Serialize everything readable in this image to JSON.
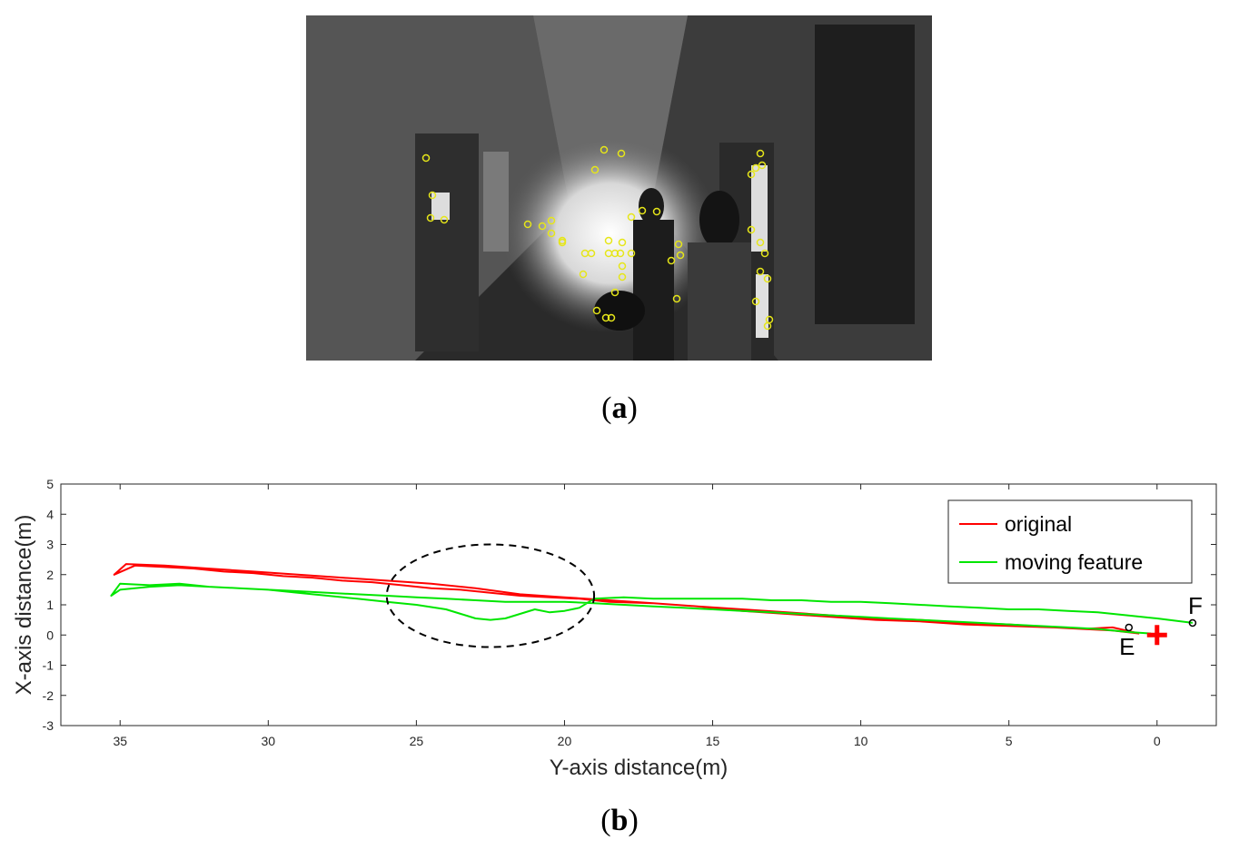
{
  "captions": {
    "a": "a",
    "b": "b"
  },
  "photo": {
    "description_icon": "grayscale-corridor-photo-with-feature-points",
    "feature_color": "#e6e619"
  },
  "chart_data": {
    "type": "line",
    "title": "",
    "xlabel": "Y-axis distance(m)",
    "ylabel": "X-axis distance(m)",
    "xlim": [
      37,
      -2
    ],
    "ylim": [
      -3,
      5
    ],
    "x_reversed": true,
    "xticks": [
      35,
      30,
      25,
      20,
      15,
      10,
      5,
      0
    ],
    "yticks": [
      5,
      4,
      3,
      2,
      1,
      0,
      -1,
      -2,
      -3
    ],
    "grid": false,
    "legend_position": "top-right",
    "series": [
      {
        "name": "original",
        "color": "#ff0000",
        "x": [
          0.6,
          1.5,
          2.5,
          3.5,
          5,
          6.5,
          8,
          9.5,
          11,
          12.5,
          14,
          15.5,
          17,
          18.5,
          19.5,
          20.5,
          21.5,
          22.5,
          23.5,
          24.5,
          25.5,
          26.5,
          27.5,
          28.5,
          29.5,
          30.5,
          31.5,
          32.5,
          33.5,
          34.5,
          35.2,
          34.8,
          33.5,
          32,
          30.5,
          29,
          27.5,
          26,
          24.5,
          23,
          21.5,
          20,
          18.5,
          17,
          15.5,
          14,
          12.5,
          11,
          9.5,
          8,
          6.5,
          5,
          3.5,
          2.5,
          1.5,
          0.6
        ],
        "y": [
          0.05,
          0.25,
          0.2,
          0.25,
          0.3,
          0.35,
          0.45,
          0.5,
          0.6,
          0.7,
          0.8,
          0.95,
          1.05,
          1.1,
          1.2,
          1.25,
          1.3,
          1.4,
          1.5,
          1.55,
          1.65,
          1.75,
          1.8,
          1.9,
          1.95,
          2.05,
          2.1,
          2.2,
          2.25,
          2.3,
          2.0,
          2.35,
          2.3,
          2.2,
          2.1,
          2.0,
          1.9,
          1.8,
          1.7,
          1.55,
          1.35,
          1.25,
          1.15,
          1.05,
          0.95,
          0.85,
          0.75,
          0.65,
          0.55,
          0.5,
          0.4,
          0.35,
          0.25,
          0.2,
          0.15,
          0.05
        ]
      },
      {
        "name": "moving feature",
        "color": "#00e600",
        "x": [
          -1.2,
          0,
          1,
          2,
          3,
          4,
          5,
          6,
          7,
          8,
          9,
          10,
          11,
          12,
          13,
          14,
          15,
          16,
          17,
          18,
          19,
          19.5,
          20,
          20.5,
          21,
          21.5,
          22,
          22.5,
          23,
          23.5,
          24,
          25,
          26,
          27,
          28,
          29,
          30,
          31,
          32,
          33,
          34,
          35,
          35.3,
          35,
          34,
          33,
          32,
          31,
          30,
          29,
          28,
          27,
          26,
          25,
          24,
          23,
          22,
          21,
          20,
          19,
          18,
          17,
          16,
          15,
          14,
          13,
          12,
          11,
          10,
          9,
          8,
          7,
          6,
          5,
          4,
          3,
          2,
          1,
          0.2
        ],
        "y": [
          0.4,
          0.55,
          0.65,
          0.75,
          0.8,
          0.85,
          0.85,
          0.9,
          0.95,
          1.0,
          1.05,
          1.1,
          1.1,
          1.15,
          1.15,
          1.2,
          1.2,
          1.2,
          1.2,
          1.25,
          1.2,
          0.9,
          0.8,
          0.75,
          0.85,
          0.7,
          0.55,
          0.5,
          0.55,
          0.7,
          0.85,
          1.0,
          1.1,
          1.2,
          1.3,
          1.4,
          1.5,
          1.55,
          1.6,
          1.65,
          1.6,
          1.5,
          1.3,
          1.7,
          1.65,
          1.7,
          1.6,
          1.55,
          1.5,
          1.45,
          1.4,
          1.35,
          1.3,
          1.25,
          1.2,
          1.15,
          1.1,
          1.1,
          1.1,
          1.05,
          1.0,
          0.95,
          0.9,
          0.85,
          0.8,
          0.75,
          0.7,
          0.65,
          0.6,
          0.55,
          0.5,
          0.45,
          0.4,
          0.35,
          0.3,
          0.25,
          0.2,
          0.1,
          0.05
        ]
      }
    ],
    "markers": [
      {
        "label": "E",
        "x": 0.95,
        "y": 0.25,
        "shape": "circle",
        "color": "#000000"
      },
      {
        "label": "F",
        "x": -1.2,
        "y": 0.4,
        "shape": "circle",
        "color": "#000000"
      },
      {
        "label": "",
        "x": 0,
        "y": 0,
        "shape": "plus",
        "color": "#ff0000"
      }
    ],
    "annotation_ellipse": {
      "cx": 22.5,
      "cy": 1.3,
      "rx": 3.5,
      "ry": 1.7,
      "style": "dashed"
    }
  }
}
